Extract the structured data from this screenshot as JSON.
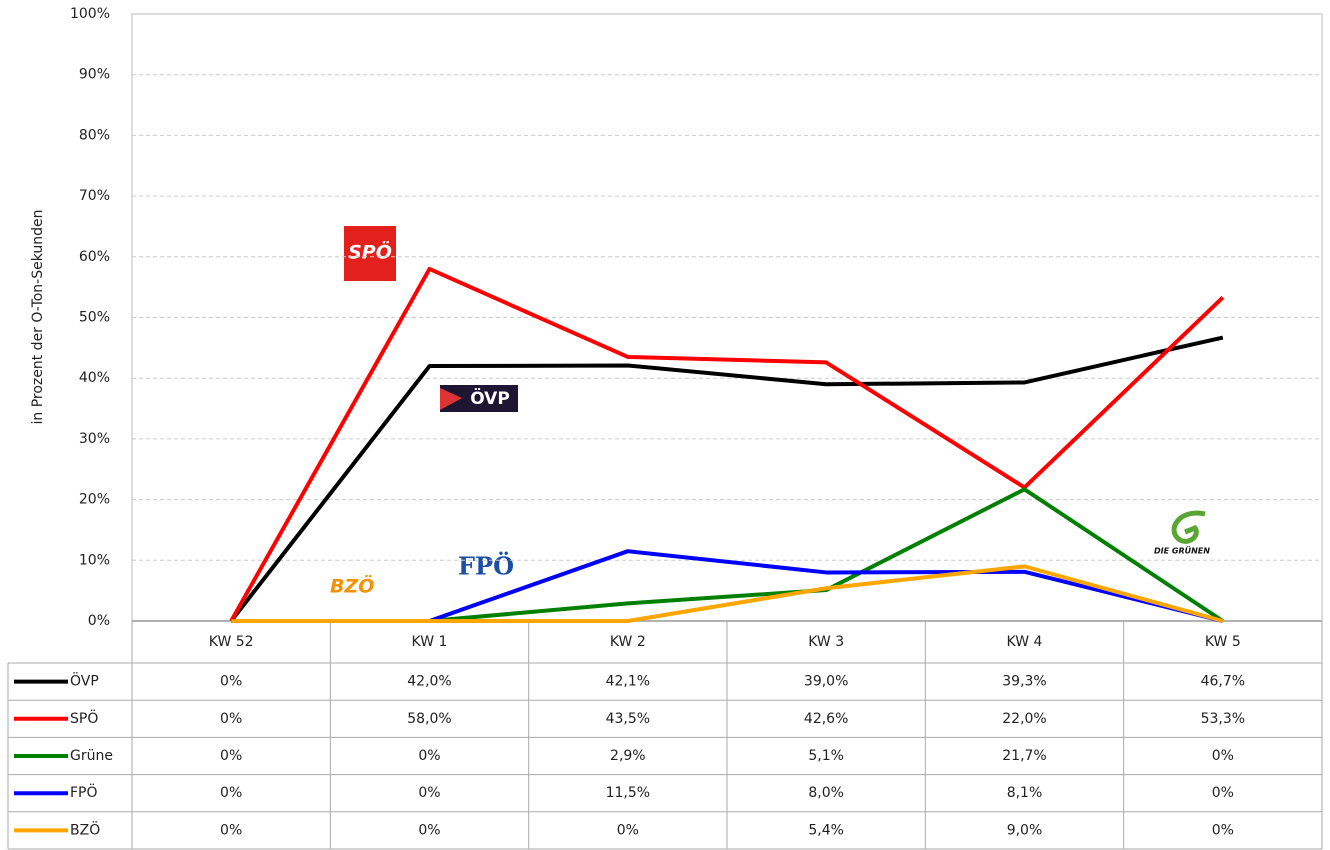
{
  "chart_data": {
    "type": "line",
    "ylabel": "in Prozent der O-Ton-Sekunden",
    "categories": [
      "KW 52",
      "KW 1",
      "KW 2",
      "KW 3",
      "KW 4",
      "KW 5"
    ],
    "ylim": [
      0,
      100
    ],
    "yticks": [
      {
        "value": 0,
        "label": "0%"
      },
      {
        "value": 10,
        "label": "10%"
      },
      {
        "value": 20,
        "label": "20%"
      },
      {
        "value": 30,
        "label": "30%"
      },
      {
        "value": 40,
        "label": "40%"
      },
      {
        "value": 50,
        "label": "50%"
      },
      {
        "value": 60,
        "label": "60%"
      },
      {
        "value": 70,
        "label": "70%"
      },
      {
        "value": 80,
        "label": "80%"
      },
      {
        "value": 90,
        "label": "90%"
      },
      {
        "value": 100,
        "label": "100%"
      }
    ],
    "grid": true,
    "data_table": true,
    "series": [
      {
        "name": "ÖVP",
        "color": "#000000",
        "values": [
          0,
          42.0,
          42.1,
          39.0,
          39.3,
          46.7
        ],
        "value_labels": [
          "0%",
          "42,0%",
          "42,1%",
          "39,0%",
          "39,3%",
          "46,7%"
        ]
      },
      {
        "name": "SPÖ",
        "color": "#ff0000",
        "values": [
          0,
          58.0,
          43.5,
          42.6,
          22.0,
          53.3
        ],
        "value_labels": [
          "0%",
          "58,0%",
          "43,5%",
          "42,6%",
          "22,0%",
          "53,3%"
        ]
      },
      {
        "name": "Grüne",
        "color": "#008000",
        "values": [
          0,
          0,
          2.9,
          5.1,
          21.7,
          0
        ],
        "value_labels": [
          "0%",
          "0%",
          "2,9%",
          "5,1%",
          "21,7%",
          "0%"
        ]
      },
      {
        "name": "FPÖ",
        "color": "#0000ff",
        "values": [
          0,
          0,
          11.5,
          8.0,
          8.1,
          0
        ],
        "value_labels": [
          "0%",
          "0%",
          "11,5%",
          "8,0%",
          "8,1%",
          "0%"
        ]
      },
      {
        "name": "BZÖ",
        "color": "#ffa500",
        "values": [
          0,
          0,
          0,
          5.4,
          9.0,
          0
        ],
        "value_labels": [
          "0%",
          "0%",
          "0%",
          "5,4%",
          "9,0%",
          "0%"
        ]
      }
    ],
    "annotations": [
      "SPÖ",
      "ÖVP",
      "FPÖ",
      "BZÖ",
      "DIE GRÜNEN"
    ]
  }
}
